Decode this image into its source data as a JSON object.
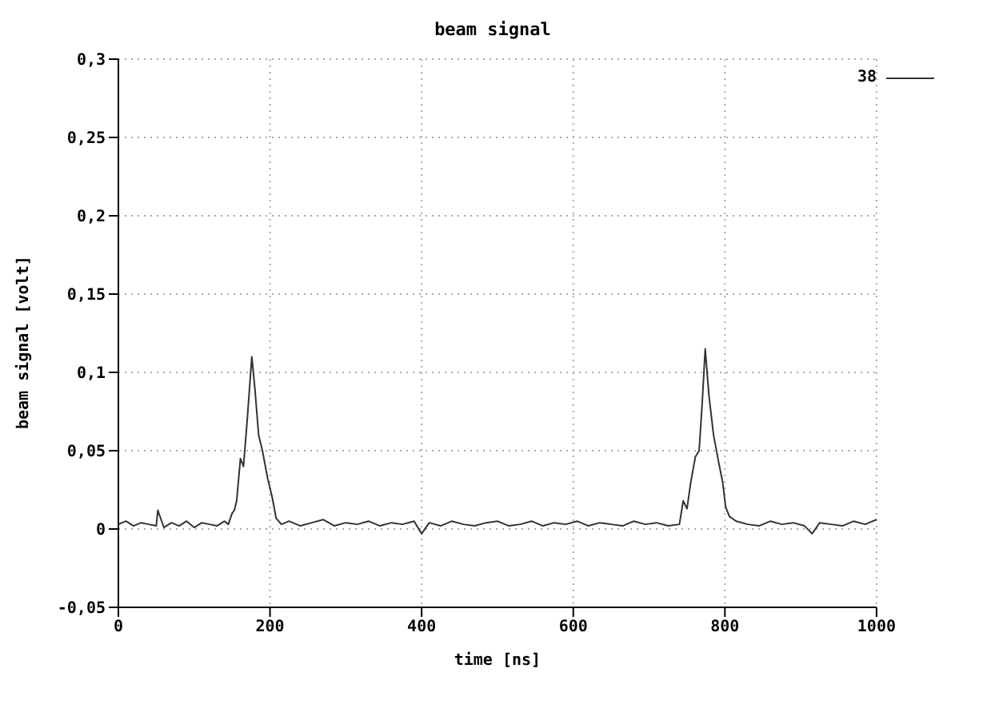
{
  "chart_data": {
    "type": "line",
    "title": "beam signal",
    "xlabel": "time [ns]",
    "ylabel": "beam signal [volt]",
    "xlim": [
      0,
      1000
    ],
    "xticks": [
      0,
      200,
      400,
      600,
      800,
      1000
    ],
    "ylim": [
      -0.05,
      0.3
    ],
    "yticks": [
      {
        "value": -0.05,
        "label": "-0,05"
      },
      {
        "value": 0,
        "label": "0"
      },
      {
        "value": 0.05,
        "label": "0,05"
      },
      {
        "value": 0.1,
        "label": "0,1"
      },
      {
        "value": 0.15,
        "label": "0,15"
      },
      {
        "value": 0.2,
        "label": "0,2"
      },
      {
        "value": 0.25,
        "label": "0,25"
      },
      {
        "value": 0.3,
        "label": "0,3"
      }
    ],
    "grid": true,
    "legend": "top right",
    "marker": "none",
    "line_style": "solid",
    "series": [
      {
        "name": "38",
        "color": "#333333",
        "x": [
          0,
          10,
          20,
          30,
          40,
          50,
          52,
          60,
          70,
          80,
          90,
          100,
          110,
          120,
          130,
          140,
          145,
          150,
          153,
          156,
          161,
          165,
          170,
          176,
          180,
          185,
          190,
          197,
          203,
          208,
          215,
          225,
          240,
          255,
          270,
          285,
          300,
          315,
          330,
          345,
          360,
          375,
          390,
          400,
          410,
          425,
          440,
          455,
          470,
          485,
          500,
          515,
          530,
          545,
          560,
          575,
          590,
          605,
          620,
          635,
          650,
          665,
          680,
          695,
          710,
          725,
          740,
          745,
          750,
          755,
          761,
          766,
          770,
          774,
          779,
          785,
          792,
          797,
          801,
          806,
          815,
          830,
          845,
          860,
          875,
          890,
          905,
          915,
          925,
          940,
          955,
          970,
          985,
          1000
        ],
        "values": [
          0.003,
          0.005,
          0.002,
          0.004,
          0.003,
          0.002,
          0.012,
          0.001,
          0.004,
          0.002,
          0.005,
          0.001,
          0.004,
          0.003,
          0.002,
          0.005,
          0.003,
          0.01,
          0.012,
          0.018,
          0.045,
          0.04,
          0.07,
          0.11,
          0.09,
          0.06,
          0.05,
          0.032,
          0.02,
          0.007,
          0.003,
          0.005,
          0.002,
          0.004,
          0.006,
          0.002,
          0.004,
          0.003,
          0.005,
          0.002,
          0.004,
          0.003,
          0.005,
          -0.003,
          0.004,
          0.002,
          0.005,
          0.003,
          0.002,
          0.004,
          0.005,
          0.002,
          0.003,
          0.005,
          0.002,
          0.004,
          0.003,
          0.005,
          0.002,
          0.004,
          0.003,
          0.002,
          0.005,
          0.003,
          0.004,
          0.002,
          0.003,
          0.018,
          0.013,
          0.03,
          0.046,
          0.05,
          0.08,
          0.115,
          0.085,
          0.06,
          0.042,
          0.03,
          0.014,
          0.008,
          0.005,
          0.003,
          0.002,
          0.005,
          0.003,
          0.004,
          0.002,
          -0.003,
          0.004,
          0.003,
          0.002,
          0.005,
          0.003,
          0.006
        ]
      }
    ]
  }
}
